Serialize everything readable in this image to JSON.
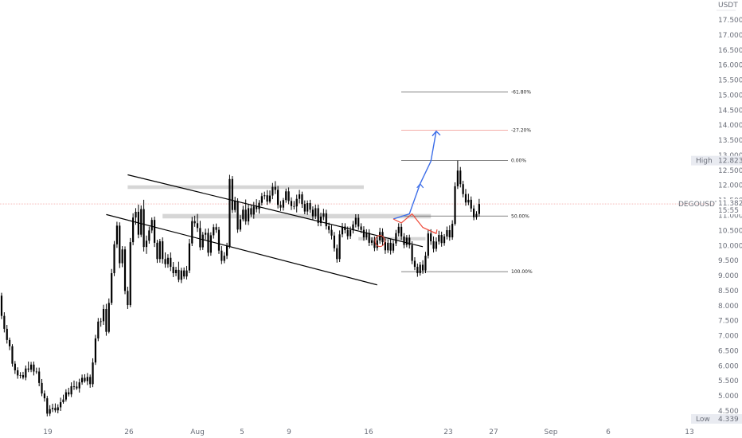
{
  "chart_data": {
    "type": "candlestick",
    "currency": "USDT",
    "symbol": "DEGOUSDT",
    "last_price": {
      "value": "11.382",
      "countdown": "15:55"
    },
    "high_marker": {
      "label": "High",
      "value": "12.823"
    },
    "low_marker": {
      "label": "Low",
      "value": "4.339"
    },
    "y_ticks": [
      "17.500",
      "17.000",
      "16.500",
      "16.000",
      "15.500",
      "15.000",
      "14.500",
      "14.000",
      "13.500",
      "13.000",
      "12.500",
      "12.000",
      "11.500",
      "11.000",
      "10.500",
      "10.000",
      "9.500",
      "9.000",
      "8.500",
      "8.000",
      "7.500",
      "7.000",
      "6.500",
      "6.000",
      "5.500",
      "5.000",
      "4.500"
    ],
    "x_ticks": [
      "19",
      "26",
      "Aug",
      "5",
      "9",
      "16",
      "23",
      "27",
      "Sep",
      "6",
      "13"
    ],
    "fib_levels": [
      {
        "label": "-61.80%",
        "price": 15.1
      },
      {
        "label": "-27.20%",
        "price": 13.83
      },
      {
        "label": "0.00%",
        "price": 12.83
      },
      {
        "label": "50.00%",
        "price": 10.98
      },
      {
        "label": "100.00%",
        "price": 9.13
      }
    ],
    "candles": [
      [
        8.33,
        8.43,
        7.55,
        7.66
      ],
      [
        7.66,
        7.78,
        7.11,
        7.23
      ],
      [
        7.23,
        7.36,
        6.74,
        6.86
      ],
      [
        6.86,
        6.94,
        6.52,
        6.65
      ],
      [
        6.65,
        6.72,
        5.97,
        6.07
      ],
      [
        6.07,
        6.16,
        5.73,
        5.85
      ],
      [
        5.85,
        5.95,
        5.57,
        5.68
      ],
      [
        5.68,
        5.79,
        5.58,
        5.69
      ],
      [
        5.69,
        5.8,
        5.55,
        5.61
      ],
      [
        5.61,
        6.01,
        5.52,
        5.91
      ],
      [
        5.91,
        6.14,
        5.79,
        5.87
      ],
      [
        5.87,
        6.13,
        5.79,
        6.04
      ],
      [
        6.04,
        6.14,
        5.68,
        5.81
      ],
      [
        5.81,
        5.94,
        5.73,
        5.81
      ],
      [
        5.81,
        5.94,
        5.32,
        5.43
      ],
      [
        5.43,
        5.56,
        4.99,
        5.08
      ],
      [
        5.08,
        5.18,
        4.81,
        4.92
      ],
      [
        4.92,
        5.0,
        4.32,
        4.41
      ],
      [
        4.41,
        4.69,
        4.33,
        4.56
      ],
      [
        4.56,
        4.74,
        4.46,
        4.6
      ],
      [
        4.6,
        4.75,
        4.45,
        4.52
      ],
      [
        4.52,
        4.72,
        4.42,
        4.62
      ],
      [
        4.62,
        4.94,
        4.5,
        4.79
      ],
      [
        4.79,
        5.04,
        4.74,
        4.88
      ],
      [
        4.88,
        5.22,
        4.81,
        5.12
      ],
      [
        5.12,
        5.27,
        4.98,
        5.05
      ],
      [
        5.05,
        5.45,
        4.96,
        5.32
      ],
      [
        5.32,
        5.51,
        5.2,
        5.31
      ],
      [
        5.31,
        5.48,
        5.2,
        5.25
      ],
      [
        5.25,
        5.57,
        5.11,
        5.45
      ],
      [
        5.45,
        5.71,
        5.37,
        5.6
      ],
      [
        5.6,
        5.72,
        5.44,
        5.49
      ],
      [
        5.49,
        5.76,
        5.36,
        5.63
      ],
      [
        5.63,
        5.71,
        5.27,
        5.39
      ],
      [
        5.39,
        6.25,
        5.29,
        6.11
      ],
      [
        6.11,
        7.03,
        6.03,
        6.91
      ],
      [
        6.91,
        7.59,
        6.82,
        7.47
      ],
      [
        7.47,
        7.59,
        7.3,
        7.48
      ],
      [
        7.48,
        8.03,
        7.36,
        7.89
      ],
      [
        7.89,
        8.06,
        7.0,
        7.13
      ],
      [
        7.13,
        8.24,
        7.08,
        8.09
      ],
      [
        8.09,
        9.22,
        8.02,
        9.08
      ],
      [
        9.08,
        10.15,
        8.98,
        10.04
      ],
      [
        10.04,
        10.79,
        9.92,
        10.66
      ],
      [
        10.66,
        10.77,
        9.25,
        9.41
      ],
      [
        9.41,
        9.98,
        9.28,
        9.87
      ],
      [
        9.87,
        9.97,
        8.38,
        8.49
      ],
      [
        8.49,
        8.63,
        7.89,
        8.02
      ],
      [
        8.02,
        10.25,
        7.95,
        10.11
      ],
      [
        10.11,
        11.07,
        10.01,
        10.93
      ],
      [
        10.93,
        11.24,
        10.69,
        11.12
      ],
      [
        11.12,
        11.36,
        10.24,
        10.36
      ],
      [
        10.36,
        11.33,
        10.28,
        11.21
      ],
      [
        11.21,
        11.52,
        9.8,
        9.95
      ],
      [
        9.95,
        10.33,
        9.72,
        10.16
      ],
      [
        10.16,
        10.63,
        10.06,
        10.5
      ],
      [
        10.5,
        10.93,
        10.41,
        10.85
      ],
      [
        10.85,
        10.96,
        9.95,
        10.09
      ],
      [
        10.09,
        10.19,
        9.42,
        9.55
      ],
      [
        9.55,
        10.22,
        9.43,
        10.14
      ],
      [
        10.14,
        10.27,
        9.4,
        9.55
      ],
      [
        9.55,
        9.77,
        9.26,
        9.38
      ],
      [
        9.38,
        9.71,
        9.26,
        9.59
      ],
      [
        9.59,
        9.77,
        9.15,
        9.29
      ],
      [
        9.29,
        9.45,
        8.95,
        9.08
      ],
      [
        9.08,
        9.29,
        8.98,
        9.19
      ],
      [
        9.19,
        9.46,
        8.78,
        8.86
      ],
      [
        8.86,
        9.26,
        8.75,
        9.17
      ],
      [
        9.17,
        9.27,
        8.89,
        8.97
      ],
      [
        8.97,
        9.32,
        8.87,
        9.17
      ],
      [
        9.17,
        10.22,
        9.08,
        10.07
      ],
      [
        10.07,
        10.95,
        9.98,
        10.81
      ],
      [
        10.81,
        10.99,
        10.62,
        10.74
      ],
      [
        10.74,
        11.05,
        10.45,
        10.58
      ],
      [
        10.58,
        10.82,
        9.84,
        9.94
      ],
      [
        9.94,
        10.45,
        9.85,
        10.36
      ],
      [
        10.36,
        10.56,
        10.2,
        10.42
      ],
      [
        10.42,
        10.57,
        9.64,
        9.76
      ],
      [
        9.76,
        10.44,
        9.66,
        10.34
      ],
      [
        10.34,
        10.71,
        10.23,
        10.61
      ],
      [
        10.61,
        10.73,
        10.42,
        10.52
      ],
      [
        10.52,
        10.62,
        9.72,
        9.83
      ],
      [
        9.83,
        9.98,
        9.38,
        9.49
      ],
      [
        9.49,
        9.78,
        9.41,
        9.66
      ],
      [
        9.66,
        10.09,
        9.55,
        9.98
      ],
      [
        9.98,
        12.35,
        9.9,
        12.21
      ],
      [
        12.21,
        12.31,
        11.08,
        11.18
      ],
      [
        11.18,
        11.62,
        11.1,
        11.48
      ],
      [
        11.48,
        11.57,
        10.42,
        10.53
      ],
      [
        10.53,
        11.01,
        10.46,
        10.87
      ],
      [
        10.87,
        11.32,
        10.8,
        11.19
      ],
      [
        11.19,
        11.53,
        10.69,
        10.8
      ],
      [
        10.8,
        11.38,
        10.68,
        11.24
      ],
      [
        11.24,
        11.33,
        10.95,
        11.03
      ],
      [
        11.03,
        11.45,
        10.89,
        11.3
      ],
      [
        11.3,
        11.54,
        11.1,
        11.21
      ],
      [
        11.21,
        11.51,
        11.06,
        11.42
      ],
      [
        11.42,
        11.75,
        11.33,
        11.64
      ],
      [
        11.64,
        11.79,
        11.53,
        11.67
      ],
      [
        11.67,
        11.84,
        11.35,
        11.46
      ],
      [
        11.46,
        11.83,
        11.4,
        11.66
      ],
      [
        11.66,
        12.08,
        11.54,
        11.95
      ],
      [
        11.95,
        12.14,
        11.71,
        11.85
      ],
      [
        11.85,
        11.98,
        11.23,
        11.35
      ],
      [
        11.35,
        11.48,
        11.15,
        11.26
      ],
      [
        11.26,
        11.58,
        11.16,
        11.51
      ],
      [
        11.51,
        11.89,
        11.42,
        11.8
      ],
      [
        11.8,
        11.93,
        11.37,
        11.48
      ],
      [
        11.48,
        11.6,
        11.18,
        11.31
      ],
      [
        11.31,
        11.48,
        11.2,
        11.3
      ],
      [
        11.3,
        11.69,
        11.1,
        11.55
      ],
      [
        11.55,
        11.85,
        11.4,
        11.7
      ],
      [
        11.7,
        11.79,
        11.25,
        11.38
      ],
      [
        11.38,
        11.5,
        11.04,
        11.13
      ],
      [
        11.13,
        11.5,
        11.02,
        11.41
      ],
      [
        11.41,
        11.52,
        11.08,
        11.19
      ],
      [
        11.19,
        11.3,
        10.86,
        10.97
      ],
      [
        10.97,
        11.36,
        10.88,
        11.24
      ],
      [
        11.24,
        11.36,
        10.64,
        10.75
      ],
      [
        10.75,
        11.09,
        10.64,
        10.96
      ],
      [
        10.96,
        11.22,
        10.84,
        11.07
      ],
      [
        11.07,
        11.19,
        10.53,
        10.64
      ],
      [
        10.64,
        10.76,
        10.4,
        10.52
      ],
      [
        10.52,
        10.68,
        10.2,
        10.33
      ],
      [
        10.33,
        10.45,
        9.8,
        9.91
      ],
      [
        9.91,
        10.03,
        9.43,
        9.55
      ],
      [
        9.55,
        10.5,
        9.45,
        10.37
      ],
      [
        10.37,
        10.75,
        10.27,
        10.63
      ],
      [
        10.63,
        10.74,
        10.4,
        10.51
      ],
      [
        10.51,
        10.63,
        10.2,
        10.31
      ],
      [
        10.31,
        10.63,
        10.22,
        10.51
      ],
      [
        10.51,
        10.82,
        10.4,
        10.7
      ],
      [
        10.7,
        11.04,
        10.6,
        10.92
      ],
      [
        10.92,
        11.04,
        10.52,
        10.63
      ],
      [
        10.63,
        10.74,
        10.41,
        10.52
      ],
      [
        10.52,
        10.64,
        10.16,
        10.27
      ],
      [
        10.27,
        10.54,
        10.19,
        10.42
      ],
      [
        10.42,
        10.54,
        9.98,
        10.09
      ],
      [
        10.09,
        10.27,
        10.0,
        10.17
      ],
      [
        10.17,
        10.3,
        9.81,
        9.92
      ],
      [
        9.92,
        10.31,
        9.83,
        10.17
      ],
      [
        10.17,
        10.59,
        10.06,
        10.45
      ],
      [
        10.45,
        10.57,
        10.0,
        10.11
      ],
      [
        10.11,
        10.24,
        9.72,
        9.84
      ],
      [
        9.84,
        10.2,
        9.75,
        10.09
      ],
      [
        10.09,
        10.21,
        9.7,
        9.83
      ],
      [
        9.83,
        10.17,
        9.75,
        10.07
      ],
      [
        10.07,
        10.52,
        9.98,
        10.41
      ],
      [
        10.41,
        10.74,
        10.3,
        10.62
      ],
      [
        10.62,
        10.73,
        10.18,
        10.3
      ],
      [
        10.3,
        10.41,
        9.91,
        10.02
      ],
      [
        10.02,
        10.35,
        9.94,
        10.26
      ],
      [
        10.26,
        10.36,
        9.9,
        10.01
      ],
      [
        10.01,
        10.14,
        9.38,
        9.49
      ],
      [
        9.49,
        9.61,
        9.18,
        9.29
      ],
      [
        9.29,
        9.4,
        8.96,
        9.08
      ],
      [
        9.08,
        9.45,
        9.0,
        9.36
      ],
      [
        9.36,
        9.51,
        9.06,
        9.17
      ],
      [
        9.17,
        9.79,
        9.08,
        9.66
      ],
      [
        9.66,
        10.53,
        9.57,
        10.4
      ],
      [
        10.4,
        10.54,
        10.02,
        10.14
      ],
      [
        10.14,
        10.3,
        9.77,
        9.89
      ],
      [
        9.89,
        10.27,
        9.8,
        10.13
      ],
      [
        10.13,
        10.49,
        10.03,
        10.35
      ],
      [
        10.35,
        10.46,
        9.96,
        10.08
      ],
      [
        10.08,
        10.38,
        9.99,
        10.3
      ],
      [
        10.3,
        10.63,
        10.2,
        10.51
      ],
      [
        10.51,
        10.67,
        10.16,
        10.27
      ],
      [
        10.27,
        10.84,
        10.19,
        10.72
      ],
      [
        10.72,
        12.1,
        10.66,
        11.97
      ],
      [
        11.97,
        12.82,
        11.88,
        12.49
      ],
      [
        12.49,
        12.61,
        11.93,
        12.04
      ],
      [
        12.04,
        12.15,
        11.6,
        11.71
      ],
      [
        11.71,
        11.88,
        11.32,
        11.43
      ],
      [
        11.43,
        11.72,
        11.34,
        11.52
      ],
      [
        11.52,
        11.63,
        11.12,
        11.23
      ],
      [
        11.23,
        11.34,
        10.84,
        10.94
      ],
      [
        10.94,
        11.14,
        10.86,
        11.05
      ],
      [
        11.05,
        11.55,
        10.96,
        11.38
      ]
    ],
    "zones": [
      {
        "from": 11.88,
        "to": 12.0,
        "start": 47,
        "end": 135
      },
      {
        "from": 10.9,
        "to": 11.05,
        "start": 60,
        "end": 160
      },
      {
        "from": 10.17,
        "to": 10.28,
        "start": 133,
        "end": 158
      }
    ],
    "channel": {
      "upper": [
        [
          47,
          12.35
        ],
        [
          157,
          9.96
        ]
      ],
      "lower": [
        [
          39,
          11.03
        ],
        [
          140,
          8.69
        ]
      ]
    },
    "marker_circle": {
      "index": 141,
      "price": 10.15
    },
    "bull_path": [
      [
        146,
        10.88
      ],
      [
        152,
        11.05
      ],
      [
        156,
        12.05
      ],
      [
        160,
        12.8
      ],
      [
        162,
        13.8
      ]
    ],
    "bear_path": [
      [
        146,
        10.88
      ],
      [
        149,
        10.75
      ],
      [
        153,
        11.05
      ],
      [
        157,
        10.6
      ],
      [
        162,
        10.4
      ]
    ],
    "colors": {
      "candle": "#000000",
      "zone": "#d6d6d6",
      "fib_line": "#5a5a5a",
      "fib_red": "#f0908c",
      "price_line": "#f0908c",
      "bull": "#3d6ee8",
      "bear": "#ef4a3a"
    }
  }
}
